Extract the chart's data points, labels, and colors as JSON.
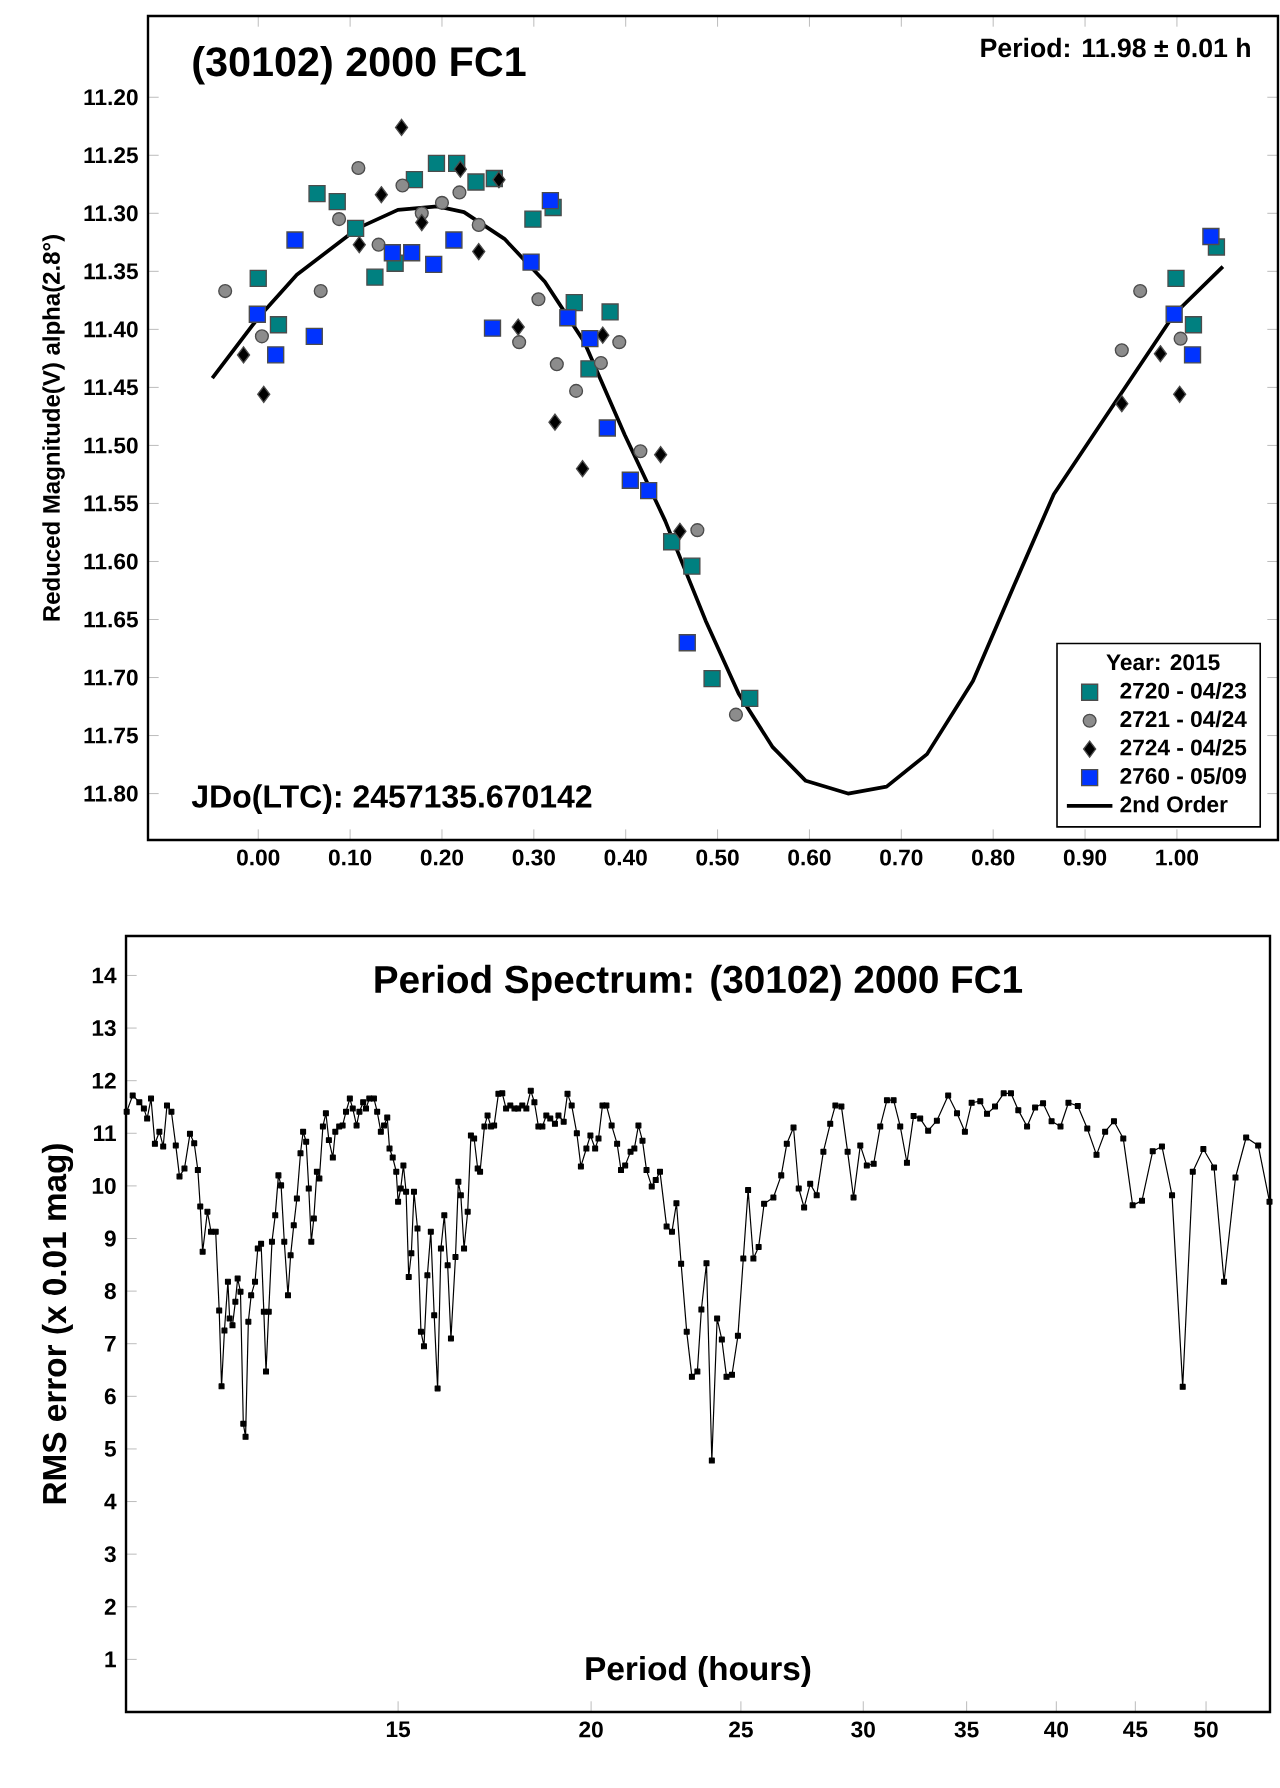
{
  "chart_data": [
    {
      "type": "scatter",
      "title": "(30102) 2000 FC1",
      "ylabel": "Reduced Magnitude(V) alpha(2.8°)",
      "legend_title": "Year: 2015",
      "legend": "bottom right",
      "annotations": [
        "JDo(LTC): 2457135.670142",
        "Period: 11.98 ± 0.01 h"
      ],
      "xlim": [
        -0.12,
        1.11
      ],
      "ylim": [
        11.84,
        11.13
      ],
      "xticks": [
        {
          "value": 0,
          "label": "0.00"
        },
        {
          "value": 0.1,
          "label": "0.10"
        },
        {
          "value": 0.2,
          "label": "0.20"
        },
        {
          "value": 0.3,
          "label": "0.30"
        },
        {
          "value": 0.4,
          "label": "0.40"
        },
        {
          "value": 0.5,
          "label": "0.50"
        },
        {
          "value": 0.6,
          "label": "0.60"
        },
        {
          "value": 0.7,
          "label": "0.70"
        },
        {
          "value": 0.8,
          "label": "0.80"
        },
        {
          "value": 0.9,
          "label": "0.90"
        },
        {
          "value": 1.0,
          "label": "1.00"
        }
      ],
      "yticks": [
        {
          "value": 11.2,
          "label": "11.20"
        },
        11.25,
        {
          "value": 11.3,
          "label": "11.30"
        },
        11.35,
        {
          "value": 11.4,
          "label": "11.40"
        },
        11.45,
        {
          "value": 11.5,
          "label": "11.50"
        },
        11.55,
        {
          "value": 11.6,
          "label": "11.60"
        },
        11.65,
        {
          "value": 11.7,
          "label": "11.70"
        },
        11.75,
        {
          "value": 11.8,
          "label": "11.80"
        }
      ],
      "series": [
        {
          "name": "2720 - 04/23",
          "color": "#008080",
          "marker": "square",
          "x": [
            0.0,
            0.022,
            0.064,
            0.086,
            0.106,
            0.127,
            0.149,
            0.17,
            0.194,
            0.216,
            0.237,
            0.257,
            0.299,
            0.321,
            0.344,
            0.36,
            0.383,
            0.45,
            0.472,
            0.494,
            0.535,
            0.999,
            1.018,
            1.043
          ],
          "values": [
            11.356,
            11.396,
            11.283,
            11.29,
            11.313,
            11.355,
            11.343,
            11.271,
            11.257,
            11.257,
            11.273,
            11.27,
            11.305,
            11.295,
            11.377,
            11.434,
            11.385,
            11.583,
            11.604,
            11.701,
            11.718,
            11.356,
            11.396,
            11.329
          ]
        },
        {
          "name": "2721 - 04/24",
          "color": "#8c8c8c",
          "marker": "circle",
          "x": [
            -0.036,
            0.004,
            0.068,
            0.088,
            0.109,
            0.131,
            0.157,
            0.178,
            0.2,
            0.219,
            0.24,
            0.284,
            0.305,
            0.325,
            0.346,
            0.373,
            0.393,
            0.416,
            0.478,
            0.52,
            0.94,
            0.96,
            1.004
          ],
          "values": [
            11.367,
            11.406,
            11.367,
            11.305,
            11.261,
            11.327,
            11.276,
            11.3,
            11.291,
            11.282,
            11.31,
            11.411,
            11.374,
            11.43,
            11.453,
            11.429,
            11.411,
            11.505,
            11.573,
            11.732,
            11.418,
            11.367,
            11.408
          ]
        },
        {
          "name": "2724 - 04/25",
          "color": "#000000",
          "marker": "diamond",
          "x": [
            -0.016,
            0.006,
            0.11,
            0.134,
            0.156,
            0.178,
            0.22,
            0.24,
            0.262,
            0.283,
            0.323,
            0.353,
            0.375,
            0.438,
            0.459,
            0.94,
            0.982,
            1.003
          ],
          "values": [
            11.422,
            11.456,
            11.327,
            11.284,
            11.226,
            11.308,
            11.262,
            11.333,
            11.271,
            11.398,
            11.48,
            11.52,
            11.405,
            11.508,
            11.574,
            11.464,
            11.421,
            11.456
          ]
        },
        {
          "name": "2760 - 05/09",
          "color": "#0033ff",
          "marker": "square",
          "x": [
            -0.001,
            0.019,
            0.04,
            0.061,
            0.146,
            0.167,
            0.191,
            0.213,
            0.255,
            0.297,
            0.318,
            0.337,
            0.361,
            0.38,
            0.405,
            0.425,
            0.467,
            0.997,
            1.017,
            1.037
          ],
          "values": [
            11.387,
            11.422,
            11.323,
            11.406,
            11.334,
            11.334,
            11.344,
            11.323,
            11.399,
            11.342,
            11.289,
            11.39,
            11.408,
            11.485,
            11.53,
            11.539,
            11.67,
            11.387,
            11.422,
            11.32
          ]
        },
        {
          "name": "2nd Order",
          "type": "line",
          "color": "#000000",
          "marker": "none",
          "x": [
            -0.05,
            0.0,
            0.042,
            0.108,
            0.152,
            0.195,
            0.224,
            0.268,
            0.312,
            0.355,
            0.399,
            0.443,
            0.487,
            0.523,
            0.56,
            0.596,
            0.642,
            0.684,
            0.728,
            0.778,
            0.822,
            0.866,
            0.909,
            0.953,
            0.997,
            1.05
          ],
          "values": [
            11.442,
            11.39,
            11.353,
            11.313,
            11.297,
            11.294,
            11.299,
            11.322,
            11.359,
            11.411,
            11.491,
            11.565,
            11.651,
            11.714,
            11.76,
            11.789,
            11.8,
            11.794,
            11.766,
            11.703,
            11.622,
            11.542,
            11.491,
            11.439,
            11.387,
            11.346
          ]
        }
      ]
    },
    {
      "type": "line",
      "title": "Period Spectrum: (30102) 2000 FC1",
      "xlabel": "Period (hours)",
      "ylabel": "RMS error (x 0.01 mag)",
      "log": "x",
      "marker": "square",
      "xlim": [
        10,
        55
      ],
      "ylim": [
        0,
        14.75
      ],
      "xticks": [
        15,
        20,
        25,
        30,
        35,
        40,
        45,
        50
      ],
      "yticks": [
        1,
        2,
        3,
        4,
        5,
        6,
        7,
        8,
        9,
        10,
        11,
        12,
        13,
        14
      ],
      "series": [
        {
          "color": "#000000",
          "x": [
            10.01,
            10.1,
            10.2,
            10.27,
            10.32,
            10.38,
            10.44,
            10.51,
            10.57,
            10.63,
            10.7,
            10.77,
            10.83,
            10.91,
            11.0,
            11.07,
            11.13,
            11.17,
            11.21,
            11.29,
            11.35,
            11.43,
            11.49,
            11.53,
            11.58,
            11.64,
            11.67,
            11.72,
            11.77,
            11.81,
            11.86,
            11.91,
            11.95,
            12.0,
            12.05,
            12.12,
            12.17,
            12.23,
            12.28,
            12.32,
            12.37,
            12.43,
            12.49,
            12.55,
            12.6,
            12.66,
            12.73,
            12.78,
            12.84,
            12.9,
            12.97,
            13.02,
            13.08,
            13.13,
            13.18,
            13.23,
            13.29,
            13.34,
            13.41,
            13.47,
            13.53,
            13.61,
            13.66,
            13.74,
            13.81,
            13.88,
            13.96,
            14.02,
            14.1,
            14.16,
            14.24,
            14.3,
            14.37,
            14.47,
            14.54,
            14.62,
            14.69,
            14.76,
            14.81,
            14.88,
            14.96,
            15.0,
            15.06,
            15.12,
            15.18,
            15.24,
            15.3,
            15.36,
            15.44,
            15.52,
            15.59,
            15.67,
            15.75,
            15.83,
            15.91,
            15.99,
            16.07,
            16.15,
            16.23,
            16.34,
            16.41,
            16.47,
            16.55,
            16.64,
            16.72,
            16.8,
            16.89,
            16.95,
            17.06,
            17.14,
            17.23,
            17.31,
            17.42,
            17.52,
            17.62,
            17.73,
            17.84,
            17.94,
            18.05,
            18.16,
            18.28,
            18.38,
            18.49,
            18.6,
            18.71,
            18.82,
            18.95,
            19.05,
            19.2,
            19.31,
            19.43,
            19.58,
            19.7,
            19.86,
            19.98,
            20.12,
            20.22,
            20.34,
            20.46,
            20.62,
            20.79,
            20.91,
            21.04,
            21.21,
            21.33,
            21.46,
            21.59,
            21.72,
            21.89,
            22.02,
            22.16,
            22.38,
            22.56,
            22.71,
            22.87,
            23.06,
            23.24,
            23.43,
            23.57,
            23.75,
            23.94,
            24.13,
            24.3,
            24.47,
            24.67,
            24.89,
            25.09,
            25.27,
            25.47,
            25.67,
            25.88,
            26.24,
            26.55,
            26.77,
            27.04,
            27.25,
            27.47,
            27.72,
            27.99,
            28.27,
            28.56,
            28.78,
            29.04,
            29.31,
            29.57,
            29.87,
            30.16,
            30.47,
            30.77,
            31.08,
            31.39,
            31.7,
            32.02,
            32.34,
            32.66,
            33.05,
            33.48,
            34.05,
            34.5,
            34.91,
            35.26,
            35.72,
            36.08,
            36.51,
            36.99,
            37.39,
            37.8,
            38.3,
            38.76,
            39.22,
            39.73,
            40.25,
            40.73,
            41.3,
            41.89,
            42.47,
            43.02,
            43.59,
            44.2,
            44.82,
            45.45,
            46.18,
            46.82,
            47.53,
            48.29,
            49.02,
            49.8,
            50.6,
            51.36,
            52.24,
            53.08,
            54.04,
            54.96
          ],
          "values": [
            11.41,
            11.72,
            11.59,
            11.47,
            11.28,
            11.66,
            10.8,
            11.03,
            10.75,
            11.53,
            11.41,
            10.77,
            10.18,
            10.33,
            10.99,
            10.81,
            10.3,
            9.61,
            8.75,
            9.51,
            9.13,
            9.13,
            7.63,
            6.19,
            7.25,
            8.18,
            7.48,
            7.35,
            7.8,
            8.24,
            7.99,
            5.48,
            5.23,
            7.42,
            7.92,
            8.18,
            8.81,
            8.9,
            7.61,
            6.47,
            7.61,
            8.94,
            9.44,
            10.2,
            10.01,
            8.94,
            7.92,
            8.68,
            9.25,
            9.76,
            10.62,
            11.03,
            10.84,
            9.95,
            8.94,
            9.38,
            10.27,
            10.14,
            11.13,
            11.38,
            10.87,
            10.54,
            11.03,
            11.13,
            11.15,
            11.41,
            11.66,
            11.47,
            11.15,
            11.41,
            11.59,
            11.47,
            11.66,
            11.66,
            11.41,
            11.03,
            11.15,
            11.3,
            10.71,
            10.54,
            10.27,
            9.7,
            9.95,
            10.39,
            9.89,
            8.27,
            8.72,
            9.89,
            9.19,
            7.23,
            6.95,
            8.3,
            9.13,
            7.54,
            6.15,
            8.81,
            9.44,
            8.49,
            7.1,
            8.65,
            10.08,
            9.82,
            8.81,
            9.51,
            10.96,
            10.9,
            10.33,
            10.27,
            11.13,
            11.34,
            11.13,
            11.15,
            11.75,
            11.76,
            11.47,
            11.53,
            11.47,
            11.47,
            11.53,
            11.47,
            11.81,
            11.59,
            11.13,
            11.13,
            11.34,
            11.28,
            11.18,
            11.34,
            11.22,
            11.75,
            11.53,
            11.0,
            10.37,
            10.71,
            10.96,
            10.71,
            10.9,
            11.53,
            11.53,
            11.15,
            10.8,
            10.3,
            10.39,
            10.65,
            10.71,
            11.15,
            10.86,
            10.3,
            9.99,
            10.11,
            10.27,
            9.23,
            9.13,
            9.67,
            8.52,
            7.23,
            6.37,
            6.47,
            7.65,
            8.53,
            4.78,
            7.48,
            7.08,
            6.37,
            6.41,
            7.15,
            8.62,
            9.92,
            8.62,
            8.84,
            9.66,
            9.78,
            10.2,
            10.8,
            11.11,
            9.95,
            9.59,
            10.04,
            9.82,
            10.65,
            11.18,
            11.53,
            11.51,
            10.65,
            9.78,
            10.77,
            10.39,
            10.42,
            11.13,
            11.63,
            11.63,
            11.13,
            10.44,
            11.33,
            11.28,
            11.05,
            11.24,
            11.72,
            11.38,
            11.03,
            11.58,
            11.61,
            11.37,
            11.51,
            11.76,
            11.76,
            11.44,
            11.13,
            11.49,
            11.57,
            11.23,
            11.13,
            11.58,
            11.52,
            11.09,
            10.59,
            11.03,
            11.23,
            10.9,
            9.63,
            9.72,
            10.66,
            10.75,
            9.82,
            6.18,
            10.27,
            10.7,
            10.35,
            8.18,
            10.16,
            10.92,
            10.77,
            9.7
          ]
        }
      ]
    }
  ]
}
